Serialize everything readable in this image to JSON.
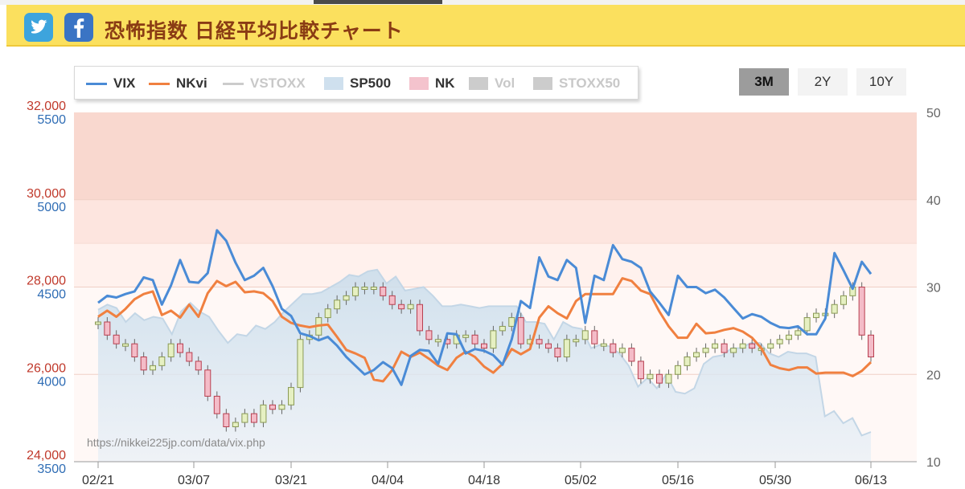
{
  "header": {
    "title": "恐怖指数 日経平均比較チャート",
    "icons": [
      "twitter-icon",
      "facebook-icon"
    ]
  },
  "range_buttons": [
    {
      "label": "3M",
      "active": true
    },
    {
      "label": "2Y",
      "active": false
    },
    {
      "label": "10Y",
      "active": false
    }
  ],
  "legend": [
    {
      "label": "VIX",
      "kind": "line",
      "color": "#4a8bd6",
      "enabled": true
    },
    {
      "label": "NKvi",
      "kind": "line",
      "color": "#f08040",
      "enabled": true
    },
    {
      "label": "VSTOXX",
      "kind": "line",
      "color": "#cccccc",
      "enabled": false
    },
    {
      "label": "SP500",
      "kind": "area",
      "color": "#cfe0ee",
      "enabled": true
    },
    {
      "label": "NK",
      "kind": "box",
      "color": "#f4c3cd",
      "enabled": true
    },
    {
      "label": "Vol",
      "kind": "box",
      "color": "#cccccc",
      "enabled": false
    },
    {
      "label": "STOXX50",
      "kind": "box",
      "color": "#cccccc",
      "enabled": false
    }
  ],
  "watermark": "https://nikkei225jp.com/data/vix.php",
  "chart_data": {
    "type": "line",
    "x_tick_labels": [
      "02/21",
      "03/07",
      "03/21",
      "04/04",
      "04/18",
      "05/02",
      "05/16",
      "05/30",
      "06/13"
    ],
    "axes": {
      "nk_left": {
        "ticks": [
          "32,000",
          "30,000",
          "28,000",
          "26,000",
          "24,000"
        ],
        "range": [
          24000,
          32000
        ],
        "color": "#c0392b"
      },
      "sp500_left": {
        "ticks": [
          "5500",
          "5000",
          "4500",
          "4000",
          "3500"
        ],
        "range": [
          3500,
          5500
        ],
        "color": "#2f6db5"
      },
      "vix_right": {
        "ticks": [
          "50",
          "40",
          "30",
          "20",
          "10"
        ],
        "range": [
          10,
          50
        ],
        "color": "#666666"
      }
    },
    "bands": [
      {
        "from": 40,
        "to": 50,
        "color": "#f9d8cf"
      },
      {
        "from": 35,
        "to": 40,
        "color": "#fde5df"
      },
      {
        "from": 30,
        "to": 35,
        "color": "#fff1ed"
      },
      {
        "from": 10,
        "to": 30,
        "color": "#fff8f6"
      }
    ],
    "series": [
      {
        "name": "VIX",
        "axis": "vix_right",
        "color": "#4a8bd6",
        "values": [
          28.2,
          29.0,
          28.8,
          29.2,
          29.5,
          31.1,
          30.8,
          28.0,
          30.2,
          33.1,
          30.6,
          30.5,
          31.6,
          36.5,
          35.3,
          32.8,
          30.8,
          31.3,
          32.2,
          30.1,
          27.5,
          26.7,
          24.7,
          24.4,
          23.9,
          24.3,
          23.3,
          22.0,
          21.0,
          20.0,
          20.5,
          21.4,
          20.7,
          18.8,
          22.1,
          22.8,
          22.7,
          21.2,
          24.7,
          24.6,
          22.4,
          22.9,
          22.7,
          22.2,
          21.1,
          24.0,
          28.4,
          27.6,
          33.4,
          31.2,
          30.8,
          33.1,
          32.2,
          25.9,
          31.3,
          30.8,
          34.8,
          33.2,
          32.9,
          32.2,
          29.5,
          28.2,
          26.8,
          31.3,
          30.0,
          30.0,
          29.3,
          29.7,
          28.8,
          27.6,
          26.4,
          26.9,
          26.6,
          25.9,
          25.4,
          25.3,
          25.5,
          24.6,
          24.6,
          26.4,
          33.9,
          31.9,
          29.8,
          32.9,
          31.5
        ]
      },
      {
        "name": "NKvi",
        "axis": "vix_right",
        "color": "#f08040",
        "values": [
          26.6,
          27.3,
          26.6,
          27.5,
          28.6,
          29.2,
          29.5,
          26.8,
          27.3,
          26.5,
          28.0,
          26.6,
          29.3,
          30.7,
          30.1,
          30.6,
          29.4,
          29.5,
          29.3,
          28.4,
          26.6,
          25.9,
          25.6,
          25.4,
          25.6,
          25.7,
          24.3,
          22.8,
          22.4,
          21.9,
          19.4,
          19.2,
          20.5,
          22.6,
          22.0,
          22.5,
          21.8,
          21.0,
          20.5,
          21.9,
          22.6,
          22.0,
          20.9,
          20.2,
          21.2,
          22.9,
          22.3,
          22.9,
          26.5,
          27.8,
          27.0,
          26.4,
          28.4,
          29.2,
          29.2,
          29.2,
          29.2,
          31.0,
          30.7,
          29.6,
          29.2,
          27.2,
          25.5,
          24.2,
          24.2,
          25.8,
          24.7,
          24.8,
          25.1,
          25.3,
          24.9,
          24.2,
          23.0,
          21.1,
          20.7,
          20.5,
          20.8,
          20.8,
          20.1,
          20.2,
          20.2,
          20.2,
          19.8,
          20.4,
          21.4
        ]
      },
      {
        "name": "SP500",
        "axis": "sp500_left",
        "kind": "area",
        "color": "#cfe0ee",
        "values": [
          4370,
          4400,
          4380,
          4300,
          4350,
          4310,
          4330,
          4320,
          4230,
          4360,
          4410,
          4360,
          4330,
          4250,
          4180,
          4230,
          4220,
          4280,
          4260,
          4300,
          4360,
          4410,
          4460,
          4460,
          4470,
          4500,
          4530,
          4570,
          4560,
          4590,
          4600,
          4520,
          4560,
          4480,
          4490,
          4500,
          4450,
          4390,
          4390,
          4400,
          4390,
          4380,
          4390,
          4390,
          4390,
          4390,
          4300,
          4300,
          4290,
          4200,
          4300,
          4270,
          4260,
          4150,
          4170,
          4160,
          4120,
          4050,
          3930,
          3980,
          3920,
          4000,
          3900,
          3890,
          3920,
          4060,
          4100,
          4110,
          4150,
          4150,
          4180,
          4180,
          4120,
          4100,
          4130,
          4120,
          4120,
          4100,
          3760,
          3790,
          3720,
          3750,
          3650,
          3670
        ]
      },
      {
        "name": "NK",
        "axis": "nk_left",
        "kind": "candlestick",
        "color": "#f4c3cd",
        "values": [
          27200,
          26900,
          26700,
          26700,
          26400,
          26100,
          26200,
          26400,
          26700,
          26500,
          26300,
          26100,
          25500,
          25100,
          24800,
          24900,
          25100,
          24900,
          25300,
          25200,
          25300,
          25700,
          26800,
          26900,
          27300,
          27500,
          27700,
          27800,
          28000,
          28000,
          28000,
          27800,
          27600,
          27500,
          27600,
          27000,
          26800,
          26800,
          26700,
          26900,
          26900,
          26700,
          26600,
          27000,
          27100,
          27300,
          26700,
          26800,
          26700,
          26600,
          26400,
          26800,
          26800,
          27000,
          26700,
          26700,
          26500,
          26600,
          26300,
          25900,
          26000,
          25800,
          26000,
          26200,
          26400,
          26500,
          26600,
          26700,
          26500,
          26600,
          26700,
          26600,
          26600,
          26700,
          26800,
          26900,
          27000,
          27300,
          27400,
          27400,
          27600,
          27800,
          28000,
          26900,
          26400
        ]
      }
    ]
  }
}
